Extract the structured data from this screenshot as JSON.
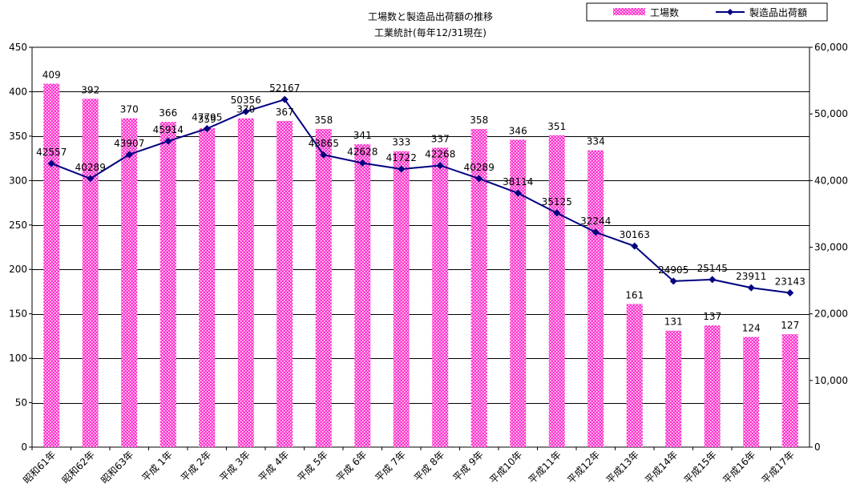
{
  "chart_data": {
    "type": "bar+line",
    "title": "工場数と製造品出荷額の推移",
    "subtitle": "工業統計(毎年12/31現在)",
    "categories": [
      "昭和61年",
      "昭和62年",
      "昭和63年",
      "平成 1年",
      "平成 2年",
      "平成 3年",
      "平成 4年",
      "平成 5年",
      "平成 6年",
      "平成 7年",
      "平成 8年",
      "平成 9年",
      "平成10年",
      "平成11年",
      "平成12年",
      "平成13年",
      "平成14年",
      "平成15年",
      "平成16年",
      "平成17年"
    ],
    "series": [
      {
        "name": "工場数",
        "type": "bar",
        "axis": "left",
        "values": [
          409,
          392,
          370,
          366,
          359,
          370,
          367,
          358,
          341,
          333,
          337,
          358,
          346,
          351,
          334,
          161,
          131,
          137,
          124,
          127
        ],
        "labels": [
          "409",
          "392",
          "370",
          "366",
          "359",
          "370",
          "367",
          "358",
          "341",
          "333",
          "337",
          "358",
          "346",
          "351",
          "334",
          "161",
          "131",
          "137",
          "124",
          "127"
        ],
        "color": "#ff33cc"
      },
      {
        "name": "製造品出荷額",
        "type": "line",
        "axis": "right",
        "values": [
          42557,
          40289,
          43907,
          45914,
          47795,
          50356,
          52167,
          43865,
          42628,
          41722,
          42268,
          40289,
          38114,
          35125,
          32244,
          30163,
          24905,
          25145,
          23911,
          23143
        ],
        "labels": [
          "42557",
          "40289",
          "43907",
          "45914",
          "47795",
          "50356",
          "52167",
          "43865",
          "42628",
          "41722",
          "42268",
          "40289",
          "38114",
          "35125",
          "32244",
          "30163",
          "24905",
          "25145",
          "23911",
          "23143"
        ],
        "color": "#000080"
      }
    ],
    "y_left": {
      "min": 0,
      "max": 450,
      "step": 50,
      "tick_labels": [
        "0",
        "50",
        "100",
        "150",
        "200",
        "250",
        "300",
        "350",
        "400",
        "450"
      ]
    },
    "y_right": {
      "min": 0,
      "max": 60000,
      "step": 10000,
      "tick_labels": [
        "0",
        "10,000",
        "20,000",
        "30,000",
        "40,000",
        "50,000",
        "60,000"
      ]
    },
    "grid": "horizontal",
    "legend_position": "top-right"
  }
}
